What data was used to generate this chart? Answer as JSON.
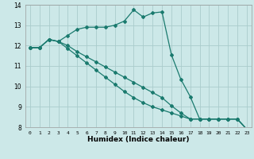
{
  "xlabel": "Humidex (Indice chaleur)",
  "bg_color": "#cce8e8",
  "grid_color": "#aacccc",
  "line_color": "#1a7a6e",
  "xlim": [
    -0.5,
    23.5
  ],
  "ylim": [
    8,
    14
  ],
  "xticks": [
    0,
    1,
    2,
    3,
    4,
    5,
    6,
    7,
    8,
    9,
    10,
    11,
    12,
    13,
    14,
    15,
    16,
    17,
    18,
    19,
    20,
    21,
    22,
    23
  ],
  "yticks": [
    8,
    9,
    10,
    11,
    12,
    13,
    14
  ],
  "series": [
    {
      "x": [
        0,
        1,
        2,
        3,
        4,
        5,
        6,
        7,
        8,
        9,
        10,
        11,
        12,
        13,
        14,
        15,
        16,
        17,
        18,
        19,
        20,
        21,
        22,
        23
      ],
      "y": [
        11.9,
        11.9,
        12.3,
        12.2,
        12.5,
        12.8,
        12.9,
        12.9,
        12.9,
        13.0,
        13.2,
        13.75,
        13.4,
        13.6,
        13.65,
        11.55,
        10.35,
        9.5,
        8.4,
        8.4,
        8.4,
        8.4,
        8.4,
        7.9
      ]
    },
    {
      "x": [
        0,
        1,
        2,
        3,
        4,
        5,
        6,
        7,
        8,
        9,
        10,
        11,
        12,
        13,
        14,
        15,
        16,
        17,
        18,
        19,
        20,
        21,
        22,
        23
      ],
      "y": [
        11.9,
        11.9,
        12.3,
        12.2,
        12.0,
        11.7,
        11.45,
        11.2,
        10.95,
        10.7,
        10.45,
        10.2,
        9.95,
        9.7,
        9.45,
        9.05,
        8.7,
        8.4,
        8.4,
        8.4,
        8.4,
        8.4,
        8.4,
        7.9
      ]
    },
    {
      "x": [
        0,
        1,
        2,
        3,
        4,
        5,
        6,
        7,
        8,
        9,
        10,
        11,
        12,
        13,
        14,
        15,
        16,
        17,
        18,
        19,
        20,
        21,
        22,
        23
      ],
      "y": [
        11.9,
        11.9,
        12.3,
        12.2,
        11.85,
        11.5,
        11.15,
        10.8,
        10.45,
        10.1,
        9.75,
        9.45,
        9.2,
        9.0,
        8.85,
        8.7,
        8.55,
        8.4,
        8.4,
        8.4,
        8.4,
        8.4,
        8.4,
        7.9
      ]
    }
  ]
}
